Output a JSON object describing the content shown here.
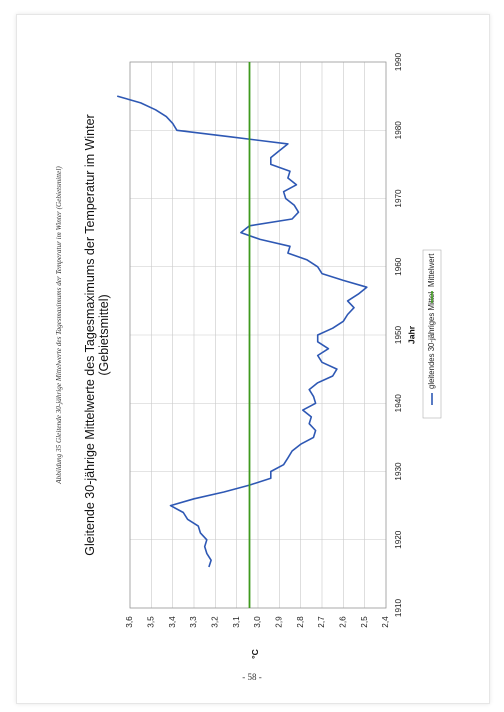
{
  "caption": "Abbildung 35 Gleitende 30-jährige Mittelwerte des Tagesmaximums der Temperatur im Winter (Gebietsmittel)",
  "page_number": "- 58 -",
  "chart_data": {
    "type": "line",
    "title": "Gleitende 30-jährige Mittelwerte des Tagesmaximums der Temperatur im Winter",
    "subtitle": "(Gebietsmittel)",
    "xlabel": "Jahr",
    "ylabel": "°C",
    "xlim": [
      1910,
      1990
    ],
    "ylim": [
      2.4,
      3.6
    ],
    "xticks": [
      "1910",
      "1920",
      "1930",
      "1940",
      "1950",
      "1960",
      "1970",
      "1980",
      "1990"
    ],
    "yticks": [
      "2,4",
      "2,5",
      "2,6",
      "2,7",
      "2,8",
      "2,9",
      "3,0",
      "3,1",
      "3,2",
      "3,3",
      "3,4",
      "3,5",
      "3,6"
    ],
    "grid": true,
    "legend_position": "bottom",
    "colors": {
      "series": "#2e58b4",
      "mean": "#3f9a1e",
      "grid": "#c9c9c9"
    },
    "series": [
      {
        "name": "gleitendes 30-jähriges Mittel",
        "x": [
          1916,
          1917,
          1918,
          1919,
          1920,
          1921,
          1922,
          1923,
          1924,
          1925,
          1926,
          1927,
          1928,
          1929,
          1930,
          1931,
          1932,
          1933,
          1934,
          1935,
          1936,
          1937,
          1938,
          1939,
          1940,
          1941,
          1942,
          1943,
          1944,
          1945,
          1946,
          1947,
          1948,
          1949,
          1950,
          1951,
          1952,
          1953,
          1954,
          1955,
          1956,
          1957,
          1958,
          1959,
          1960,
          1961,
          1962,
          1963,
          1964,
          1965,
          1966,
          1967,
          1968,
          1969,
          1970,
          1971,
          1972,
          1973,
          1974,
          1975,
          1976,
          1977,
          1978,
          1979,
          1980,
          1981,
          1982,
          1983,
          1984,
          1985
        ],
        "values": [
          3.23,
          3.22,
          3.24,
          3.25,
          3.24,
          3.27,
          3.28,
          3.33,
          3.35,
          3.41,
          3.3,
          3.16,
          3.04,
          2.94,
          2.94,
          2.88,
          2.86,
          2.84,
          2.8,
          2.74,
          2.73,
          2.76,
          2.75,
          2.79,
          2.73,
          2.74,
          2.76,
          2.72,
          2.65,
          2.63,
          2.7,
          2.72,
          2.67,
          2.72,
          2.72,
          2.65,
          2.6,
          2.58,
          2.55,
          2.58,
          2.53,
          2.49,
          2.6,
          2.7,
          2.72,
          2.77,
          2.86,
          2.85,
          2.99,
          3.08,
          3.04,
          2.84,
          2.81,
          2.83,
          2.87,
          2.88,
          2.82,
          2.86,
          2.85,
          2.94,
          2.94,
          2.9,
          2.86,
          3.12,
          3.38,
          3.4,
          3.43,
          3.48,
          3.55,
          3.66
        ]
      },
      {
        "name": "Mittelwert",
        "x": [
          1910,
          1990
        ],
        "values": [
          3.04,
          3.04
        ]
      }
    ]
  }
}
